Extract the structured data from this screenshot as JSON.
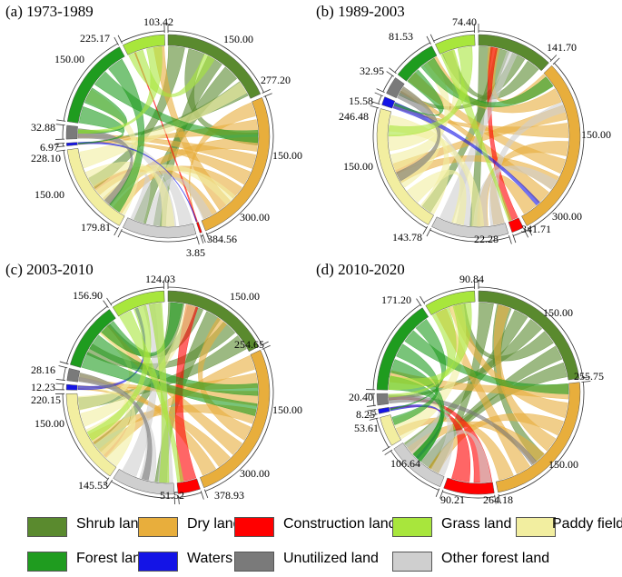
{
  "colors": {
    "shrub": "#5a8a2e",
    "dry": "#e8ae3c",
    "construction": "#ff0000",
    "grass": "#a8e63c",
    "paddy": "#f2eea0",
    "forest": "#1f9c1f",
    "waters": "#1414e6",
    "unutilized": "#7a7a7a",
    "other_forest": "#cfcfcf"
  },
  "legend": [
    {
      "key": "shrub",
      "label": "Shrub land"
    },
    {
      "key": "dry",
      "label": "Dry land"
    },
    {
      "key": "construction",
      "label": "Construction land"
    },
    {
      "key": "grass",
      "label": "Grass land"
    },
    {
      "key": "paddy",
      "label": "Paddy field"
    },
    {
      "key": "forest",
      "label": "Forest land"
    },
    {
      "key": "waters",
      "label": "Waters"
    },
    {
      "key": "unutilized",
      "label": "Unutilized land"
    },
    {
      "key": "other_forest",
      "label": "Other forest land"
    }
  ],
  "chart_data": [
    {
      "type": "chord",
      "title": "(a) 1973-1989",
      "segments": [
        {
          "key": "shrub",
          "value": 277.2
        },
        {
          "key": "dry",
          "value": 384.56
        },
        {
          "key": "construction",
          "value": 3.85
        },
        {
          "key": "other_forest",
          "value": 179.81
        },
        {
          "key": "paddy",
          "value": 228.1
        },
        {
          "key": "waters",
          "value": 6.97
        },
        {
          "key": "unutilized",
          "value": 32.88
        },
        {
          "key": "forest",
          "value": 225.17
        },
        {
          "key": "grass",
          "value": 103.42
        }
      ],
      "labels": [
        "103.42",
        "150.00",
        "277.20",
        "150.00",
        "300.00",
        "384.56",
        "3.85",
        "179.81",
        "150.00",
        "228.10",
        "6.97",
        "32.88",
        "150.00",
        "225.17"
      ]
    },
    {
      "type": "chord",
      "title": "(b) 1989-2003",
      "segments": [
        {
          "key": "shrub",
          "value": 141.7
        },
        {
          "key": "dry",
          "value": 341.71
        },
        {
          "key": "construction",
          "value": 22.28
        },
        {
          "key": "other_forest",
          "value": 143.78
        },
        {
          "key": "paddy",
          "value": 246.48
        },
        {
          "key": "waters",
          "value": 15.58
        },
        {
          "key": "unutilized",
          "value": 32.95
        },
        {
          "key": "forest",
          "value": 81.53
        },
        {
          "key": "grass",
          "value": 74.4
        }
      ],
      "labels": [
        "74.40",
        "141.70",
        "150.00",
        "300.00",
        "341.71",
        "22.28",
        "143.78",
        "150.00",
        "246.48",
        "15.58",
        "32.95",
        "81.53"
      ]
    },
    {
      "type": "chord",
      "title": "(c) 2003-2010",
      "segments": [
        {
          "key": "shrub",
          "value": 254.65
        },
        {
          "key": "dry",
          "value": 378.93
        },
        {
          "key": "construction",
          "value": 51.52
        },
        {
          "key": "other_forest",
          "value": 145.53
        },
        {
          "key": "paddy",
          "value": 220.15
        },
        {
          "key": "waters",
          "value": 12.23
        },
        {
          "key": "unutilized",
          "value": 28.16
        },
        {
          "key": "forest",
          "value": 156.9
        },
        {
          "key": "grass",
          "value": 124.03
        }
      ],
      "labels": [
        "124.03",
        "150.00",
        "254.65",
        "150.00",
        "300.00",
        "378.93",
        "51.52",
        "145.53",
        "150.00",
        "220.15",
        "12.23",
        "28.16",
        "156.90"
      ]
    },
    {
      "type": "chord",
      "title": "(d) 2010-2020",
      "segments": [
        {
          "key": "shrub",
          "value": 255.75
        },
        {
          "key": "dry",
          "value": 264.18
        },
        {
          "key": "construction",
          "value": 90.21
        },
        {
          "key": "other_forest",
          "value": 106.64
        },
        {
          "key": "paddy",
          "value": 53.61
        },
        {
          "key": "waters",
          "value": 8.25
        },
        {
          "key": "unutilized",
          "value": 20.4
        },
        {
          "key": "forest",
          "value": 171.2
        },
        {
          "key": "grass",
          "value": 90.84
        }
      ],
      "labels": [
        "90.84",
        "150.00",
        "255.75",
        "150.00",
        "264.18",
        "90.21",
        "106.64",
        "53.61",
        "8.25",
        "20.40",
        "171.20"
      ]
    }
  ]
}
